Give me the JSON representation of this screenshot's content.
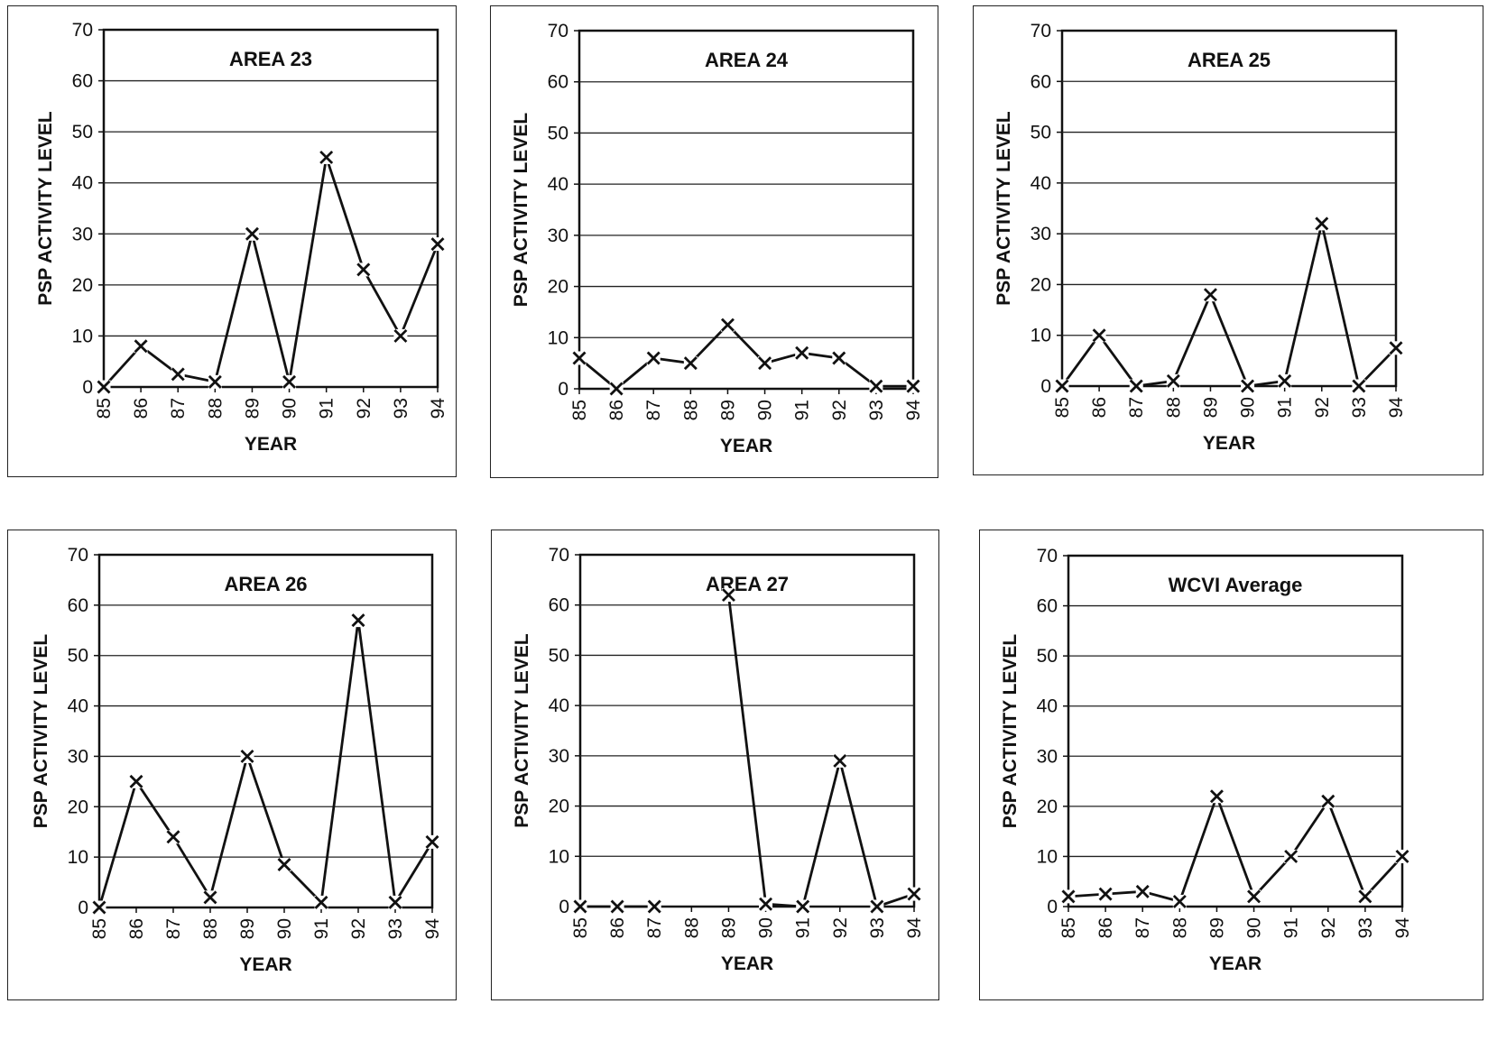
{
  "chart_data": [
    {
      "type": "line",
      "title": "AREA 23",
      "xlabel": "YEAR",
      "ylabel": "PSP ACTIVITY LEVEL",
      "x": [
        "85",
        "86",
        "87",
        "88",
        "89",
        "90",
        "91",
        "92",
        "93",
        "94"
      ],
      "ylim": [
        0,
        70
      ],
      "yticks": [
        0,
        10,
        20,
        30,
        40,
        50,
        60,
        70
      ],
      "grid": "horizontal",
      "marker": "x",
      "series": [
        {
          "values": [
            0,
            8,
            2.5,
            1,
            30,
            1,
            45,
            23,
            10,
            28
          ]
        }
      ]
    },
    {
      "type": "line",
      "title": "AREA 24",
      "xlabel": "YEAR",
      "ylabel": "PSP ACTIVITY LEVEL",
      "x": [
        "85",
        "86",
        "87",
        "88",
        "89",
        "90",
        "91",
        "92",
        "93",
        "94"
      ],
      "ylim": [
        0,
        70
      ],
      "yticks": [
        0,
        10,
        20,
        30,
        40,
        50,
        60,
        70
      ],
      "grid": "horizontal",
      "marker": "x",
      "series": [
        {
          "values": [
            6,
            0,
            6,
            5,
            12.5,
            5,
            7,
            6,
            0.5,
            0.5
          ]
        }
      ]
    },
    {
      "type": "line",
      "title": "AREA 25",
      "xlabel": "YEAR",
      "ylabel": "PSP ACTIVITY LEVEL",
      "x": [
        "85",
        "86",
        "87",
        "88",
        "89",
        "90",
        "91",
        "92",
        "93",
        "94"
      ],
      "ylim": [
        0,
        70
      ],
      "yticks": [
        0,
        10,
        20,
        30,
        40,
        50,
        60,
        70
      ],
      "grid": "horizontal",
      "marker": "x",
      "series": [
        {
          "values": [
            0,
            10,
            0,
            1,
            18,
            0,
            1,
            32,
            0,
            7.5
          ]
        }
      ]
    },
    {
      "type": "line",
      "title": "AREA 26",
      "xlabel": "YEAR",
      "ylabel": "PSP ACTIVITY LEVEL",
      "x": [
        "85",
        "86",
        "87",
        "88",
        "89",
        "90",
        "91",
        "92",
        "93",
        "94"
      ],
      "ylim": [
        0,
        70
      ],
      "yticks": [
        0,
        10,
        20,
        30,
        40,
        50,
        60,
        70
      ],
      "grid": "horizontal",
      "marker": "x",
      "series": [
        {
          "values": [
            0,
            25,
            14,
            2,
            30,
            8.5,
            1,
            57,
            1,
            13
          ]
        }
      ]
    },
    {
      "type": "line",
      "title": "AREA 27",
      "xlabel": "YEAR",
      "ylabel": "PSP ACTIVITY LEVEL",
      "x": [
        "85",
        "86",
        "87",
        "88",
        "89",
        "90",
        "91",
        "92",
        "93",
        "94"
      ],
      "ylim": [
        0,
        70
      ],
      "yticks": [
        0,
        10,
        20,
        30,
        40,
        50,
        60,
        70
      ],
      "grid": "horizontal",
      "marker": "x",
      "series": [
        {
          "values": [
            0,
            0,
            0,
            null,
            62,
            0.5,
            0,
            29,
            0,
            2.5
          ]
        }
      ]
    },
    {
      "type": "line",
      "title": "WCVI Average",
      "xlabel": "YEAR",
      "ylabel": "PSP ACTIVITY LEVEL",
      "x": [
        "85",
        "86",
        "87",
        "88",
        "89",
        "90",
        "91",
        "92",
        "93",
        "94"
      ],
      "ylim": [
        0,
        70
      ],
      "yticks": [
        0,
        10,
        20,
        30,
        40,
        50,
        60,
        70
      ],
      "grid": "horizontal",
      "marker": "x",
      "series": [
        {
          "values": [
            2,
            2.5,
            3,
            1,
            22,
            2,
            10,
            21,
            2,
            10
          ]
        }
      ]
    }
  ]
}
